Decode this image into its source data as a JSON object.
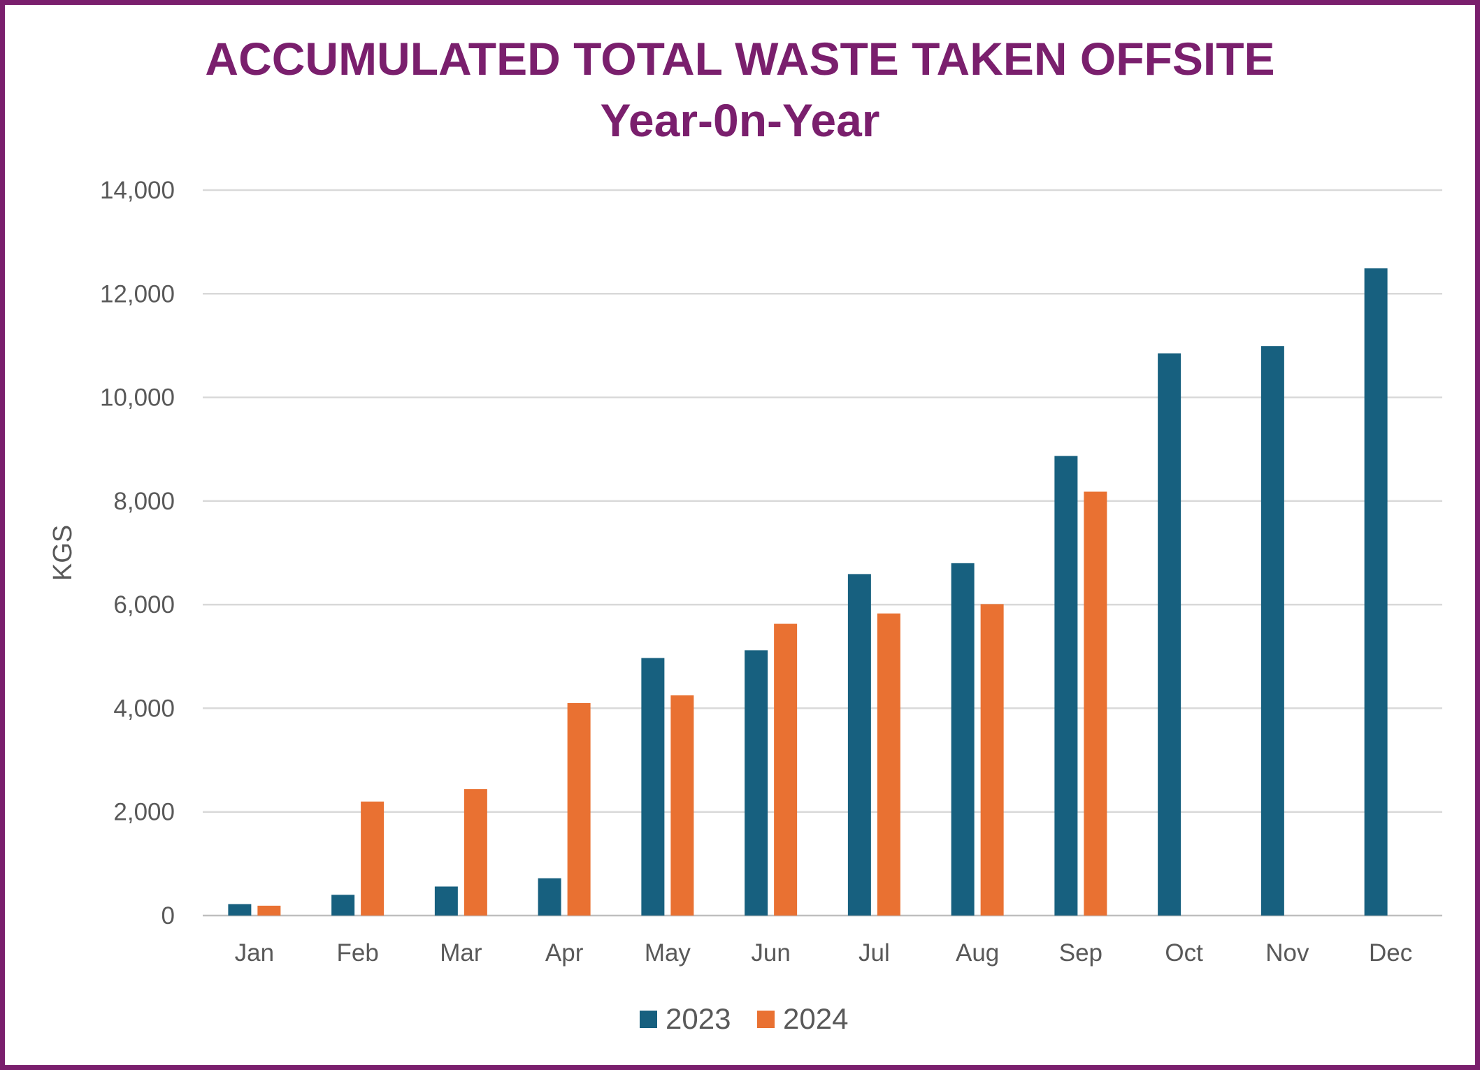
{
  "chart_data": {
    "type": "bar",
    "title": "ACCUMULATED TOTAL WASTE TAKEN OFFSITE",
    "subtitle": "Year-0n-Year",
    "xlabel": "",
    "ylabel": "KGS",
    "ylim": [
      0,
      14000
    ],
    "yticks": [
      0,
      2000,
      4000,
      6000,
      8000,
      10000,
      12000,
      14000
    ],
    "ytick_labels": [
      "0",
      "2,000",
      "4,000",
      "6,000",
      "8,000",
      "10,000",
      "12,000",
      "14,000"
    ],
    "grid": true,
    "legend_position": "bottom",
    "categories": [
      "Jan",
      "Feb",
      "Mar",
      "Apr",
      "May",
      "Jun",
      "Jul",
      "Aug",
      "Sep",
      "Oct",
      "Nov",
      "Dec"
    ],
    "series": [
      {
        "name": "2023",
        "color": "#17607f",
        "values": [
          220,
          400,
          560,
          720,
          4970,
          5120,
          6590,
          6800,
          8870,
          10850,
          10990,
          12490
        ]
      },
      {
        "name": "2024",
        "color": "#e97132",
        "values": [
          190,
          2200,
          2440,
          4100,
          4250,
          5630,
          5830,
          6010,
          8180,
          null,
          null,
          null
        ]
      }
    ]
  }
}
